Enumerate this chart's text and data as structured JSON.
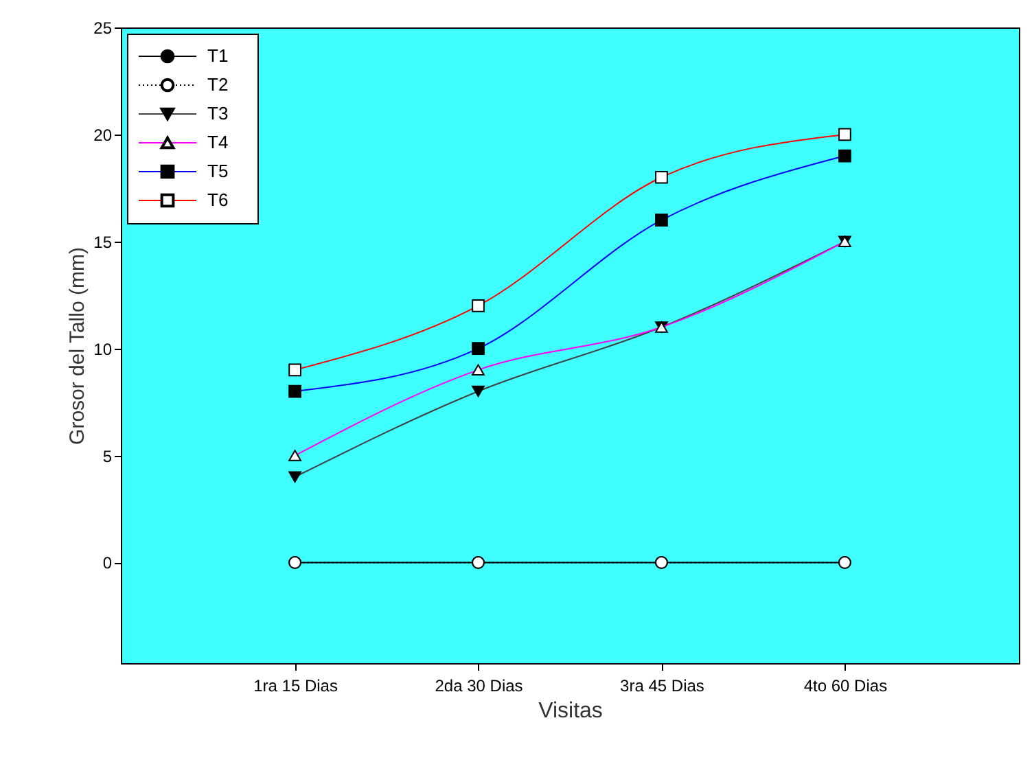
{
  "chart_data": {
    "type": "line",
    "xlabel": "Visitas",
    "ylabel": "Grosor del Tallo (mm)",
    "categories": [
      "1ra 15 Dias",
      "2da 30 Dias",
      "3ra 45 Dias",
      "4to 60 Dias"
    ],
    "series": [
      {
        "name": "T1",
        "color": "#000000",
        "marker": "circle",
        "line_style": "solid",
        "values": [
          0,
          0,
          0,
          0
        ]
      },
      {
        "name": "T2",
        "color": "#000000",
        "marker": "circle",
        "line_style": "dotted",
        "values": [
          0,
          0,
          0,
          0
        ]
      },
      {
        "name": "T3",
        "color": "#404040",
        "marker": "triangle",
        "line_style": "solid",
        "values": [
          4,
          8,
          11,
          15
        ]
      },
      {
        "name": "T4",
        "color": "#ff00ff",
        "marker": "triangle",
        "line_style": "solid",
        "values": [
          5,
          9,
          11,
          15
        ]
      },
      {
        "name": "T5",
        "color": "#0000ff",
        "marker": "square",
        "line_style": "solid",
        "values": [
          8,
          10,
          16,
          19
        ]
      },
      {
        "name": "T6",
        "color": "#ff0000",
        "marker": "square",
        "line_style": "solid",
        "values": [
          9,
          12,
          18,
          20
        ]
      }
    ],
    "ylim": [
      -4.7,
      25
    ],
    "yticks": [
      0,
      5,
      10,
      15,
      20,
      25
    ],
    "grid": false,
    "legend": "top left"
  }
}
